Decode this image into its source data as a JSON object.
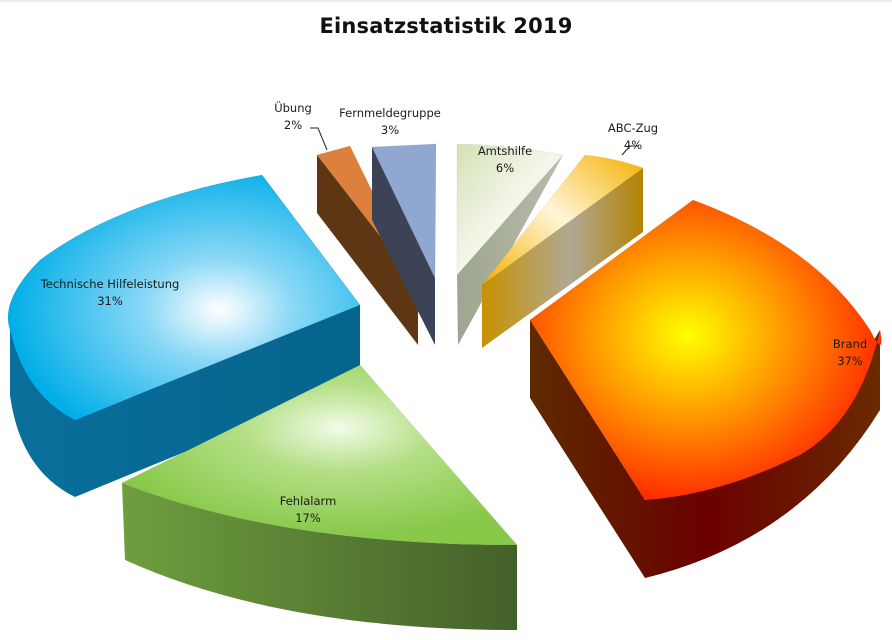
{
  "chart_data": {
    "type": "pie",
    "style": "3d-exploded",
    "title": "Einsatzstatistik 2019",
    "slices": [
      {
        "label": "Brand",
        "value": 37,
        "display": "37%",
        "color": "#ff7a00"
      },
      {
        "label": "Fehlalarm",
        "value": 17,
        "display": "17%",
        "color": "#92d050"
      },
      {
        "label": "Technische Hilfeleistung",
        "value": 31,
        "display": "31%",
        "color": "#00b0f0"
      },
      {
        "label": "Übung",
        "value": 2,
        "display": "2%",
        "color": "#e07b39"
      },
      {
        "label": "Fernmeldegruppe",
        "value": 3,
        "display": "3%",
        "color": "#8ea9db"
      },
      {
        "label": "Amtshilfe",
        "value": 6,
        "display": "6%",
        "color": "#d8e4bc"
      },
      {
        "label": "ABC-Zug",
        "value": 4,
        "display": "4%",
        "color": "#ffc000"
      }
    ],
    "legend": "none",
    "data_labels": "category-and-percent"
  }
}
